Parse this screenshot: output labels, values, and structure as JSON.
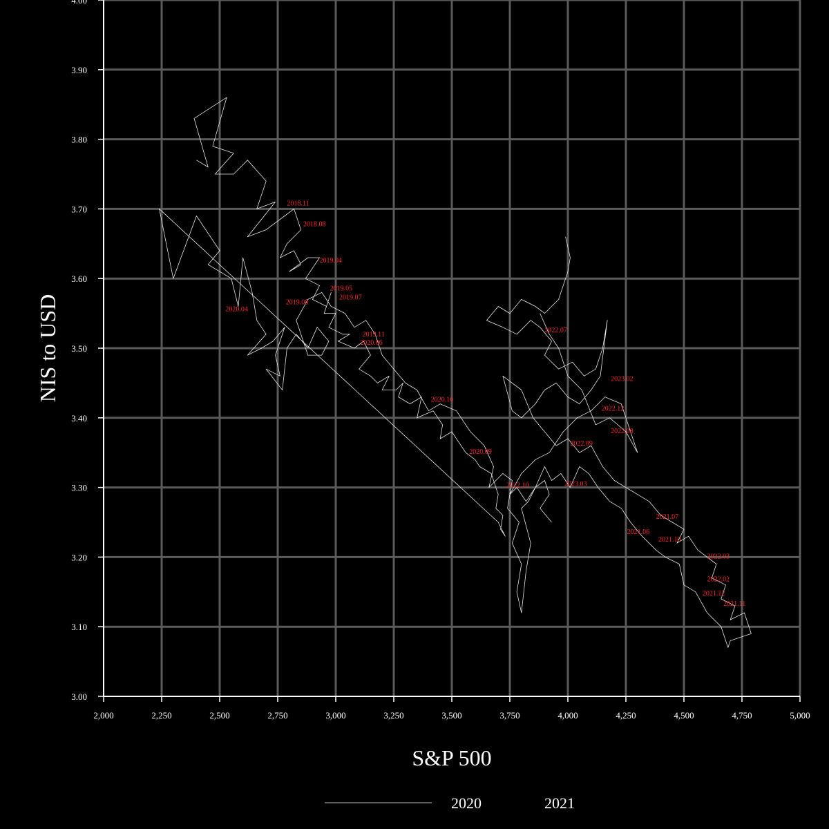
{
  "chart_data": {
    "type": "line",
    "title": "",
    "xlabel": "S&P 500",
    "ylabel": "NIS to USD",
    "xlim": [
      2000,
      5000
    ],
    "ylim": [
      3.0,
      4.0
    ],
    "x_ticks": [
      2000,
      2250,
      2500,
      2750,
      3000,
      3250,
      3500,
      3750,
      4000,
      4250,
      4500,
      4750,
      5000
    ],
    "x_tick_labels": [
      "2,000",
      "2,250",
      "2,500",
      "2,750",
      "3,000",
      "3,250",
      "3,500",
      "3,750",
      "4,000",
      "4,250",
      "4,500",
      "4,750",
      "5,000"
    ],
    "y_ticks": [
      3.0,
      3.1,
      3.2,
      3.3,
      3.4,
      3.5,
      3.6,
      3.7,
      3.8,
      3.9,
      4.0
    ],
    "y_tick_labels": [
      "3.00",
      "3.10",
      "3.20",
      "3.30",
      "3.40",
      "3.50",
      "3.60",
      "3.70",
      "3.80",
      "3.90",
      "4.00"
    ],
    "grid": true,
    "legend_position": "bottom",
    "series": [
      {
        "name": "2020",
        "color": "#e8e8e8",
        "points": [
          [
            2400,
            3.77
          ],
          [
            2450,
            3.76
          ],
          [
            2390,
            3.83
          ],
          [
            2530,
            3.86
          ],
          [
            2470,
            3.79
          ],
          [
            2560,
            3.78
          ],
          [
            2480,
            3.75
          ],
          [
            2560,
            3.75
          ],
          [
            2620,
            3.77
          ],
          [
            2700,
            3.74
          ],
          [
            2660,
            3.7
          ],
          [
            2740,
            3.71
          ],
          [
            2620,
            3.66
          ],
          [
            2700,
            3.67
          ],
          [
            2780,
            3.69
          ],
          [
            2820,
            3.7
          ],
          [
            2850,
            3.67
          ],
          [
            2790,
            3.65
          ],
          [
            2760,
            3.63
          ],
          [
            2820,
            3.64
          ],
          [
            2850,
            3.62
          ],
          [
            2800,
            3.61
          ],
          [
            2880,
            3.63
          ],
          [
            2930,
            3.63
          ],
          [
            2870,
            3.6
          ],
          [
            2930,
            3.59
          ],
          [
            2900,
            3.57
          ],
          [
            2960,
            3.56
          ],
          [
            2980,
            3.58
          ],
          [
            2950,
            3.55
          ],
          [
            3000,
            3.55
          ],
          [
            2970,
            3.53
          ],
          [
            3030,
            3.52
          ],
          [
            3060,
            3.52
          ],
          [
            3010,
            3.51
          ],
          [
            3080,
            3.5
          ],
          [
            3120,
            3.51
          ],
          [
            3150,
            3.49
          ],
          [
            3100,
            3.47
          ],
          [
            3150,
            3.46
          ],
          [
            3180,
            3.45
          ],
          [
            3230,
            3.46
          ],
          [
            3200,
            3.44
          ],
          [
            3260,
            3.44
          ],
          [
            3290,
            3.45
          ],
          [
            3270,
            3.43
          ],
          [
            3320,
            3.42
          ],
          [
            3370,
            3.43
          ],
          [
            3350,
            3.4
          ],
          [
            3420,
            3.41
          ],
          [
            3460,
            3.39
          ],
          [
            3450,
            3.37
          ],
          [
            3500,
            3.38
          ],
          [
            3540,
            3.36
          ],
          [
            3560,
            3.35
          ],
          [
            3600,
            3.34
          ],
          [
            3620,
            3.33
          ],
          [
            3670,
            3.32
          ],
          [
            3690,
            3.3
          ],
          [
            3700,
            3.29
          ],
          [
            3690,
            3.27
          ],
          [
            3720,
            3.26
          ],
          [
            3710,
            3.24
          ],
          [
            3730,
            3.23
          ],
          [
            3700,
            3.25
          ],
          [
            2240,
            3.7
          ],
          [
            2300,
            3.6
          ],
          [
            2400,
            3.69
          ],
          [
            2500,
            3.64
          ],
          [
            2450,
            3.62
          ],
          [
            2550,
            3.6
          ],
          [
            2580,
            3.56
          ],
          [
            2600,
            3.63
          ],
          [
            2640,
            3.58
          ],
          [
            2660,
            3.54
          ],
          [
            2700,
            3.52
          ],
          [
            2620,
            3.49
          ],
          [
            2680,
            3.5
          ],
          [
            2730,
            3.51
          ],
          [
            2780,
            3.53
          ],
          [
            2740,
            3.49
          ],
          [
            2760,
            3.46
          ],
          [
            2700,
            3.47
          ],
          [
            2770,
            3.44
          ],
          [
            2790,
            3.5
          ],
          [
            2830,
            3.52
          ],
          [
            2880,
            3.5
          ],
          [
            2920,
            3.53
          ],
          [
            2970,
            3.51
          ],
          [
            2940,
            3.49
          ],
          [
            2880,
            3.49
          ],
          [
            2830,
            3.54
          ],
          [
            2880,
            3.57
          ],
          [
            2940,
            3.58
          ],
          [
            2980,
            3.56
          ],
          [
            3040,
            3.55
          ],
          [
            3080,
            3.53
          ],
          [
            3130,
            3.54
          ],
          [
            3170,
            3.52
          ],
          [
            3200,
            3.49
          ],
          [
            3250,
            3.47
          ],
          [
            3300,
            3.45
          ],
          [
            3350,
            3.44
          ],
          [
            3400,
            3.41
          ],
          [
            3450,
            3.42
          ],
          [
            3520,
            3.41
          ],
          [
            3580,
            3.38
          ],
          [
            3640,
            3.36
          ],
          [
            3680,
            3.33
          ],
          [
            3660,
            3.3
          ],
          [
            3720,
            3.32
          ],
          [
            3760,
            3.31
          ],
          [
            3740,
            3.27
          ],
          [
            3790,
            3.25
          ],
          [
            3760,
            3.22
          ],
          [
            3800,
            3.19
          ],
          [
            3780,
            3.15
          ],
          [
            3800,
            3.12
          ],
          [
            3820,
            3.18
          ],
          [
            3840,
            3.22
          ],
          [
            3800,
            3.27
          ],
          [
            3830,
            3.28
          ],
          [
            3860,
            3.3
          ],
          [
            3900,
            3.31
          ],
          [
            3920,
            3.29
          ],
          [
            3880,
            3.27
          ],
          [
            3930,
            3.25
          ]
        ]
      },
      {
        "name": "2021",
        "color": "#e8e8e8",
        "points": [
          [
            3990,
            3.66
          ],
          [
            4010,
            3.63
          ],
          [
            4000,
            3.61
          ],
          [
            3960,
            3.57
          ],
          [
            3900,
            3.55
          ],
          [
            3860,
            3.56
          ],
          [
            3800,
            3.57
          ],
          [
            3750,
            3.55
          ],
          [
            3700,
            3.56
          ],
          [
            3650,
            3.54
          ],
          [
            3720,
            3.53
          ],
          [
            3780,
            3.52
          ],
          [
            3840,
            3.54
          ],
          [
            3880,
            3.53
          ],
          [
            3930,
            3.51
          ],
          [
            3900,
            3.49
          ],
          [
            3960,
            3.47
          ],
          [
            4020,
            3.48
          ],
          [
            4070,
            3.46
          ],
          [
            4120,
            3.47
          ],
          [
            4150,
            3.5
          ],
          [
            4170,
            3.54
          ],
          [
            4140,
            3.46
          ],
          [
            4100,
            3.44
          ],
          [
            4050,
            3.42
          ],
          [
            4000,
            3.43
          ],
          [
            3950,
            3.45
          ],
          [
            3900,
            3.44
          ],
          [
            3860,
            3.42
          ],
          [
            3800,
            3.4
          ],
          [
            3760,
            3.41
          ],
          [
            3720,
            3.46
          ],
          [
            3800,
            3.44
          ],
          [
            3850,
            3.4
          ],
          [
            3900,
            3.38
          ],
          [
            3950,
            3.36
          ],
          [
            4000,
            3.37
          ],
          [
            4050,
            3.35
          ],
          [
            4100,
            3.36
          ],
          [
            4150,
            3.33
          ],
          [
            4200,
            3.31
          ],
          [
            4250,
            3.3
          ],
          [
            4300,
            3.29
          ],
          [
            4350,
            3.28
          ],
          [
            4400,
            3.26
          ],
          [
            4450,
            3.25
          ],
          [
            4500,
            3.24
          ],
          [
            4470,
            3.22
          ],
          [
            4520,
            3.23
          ],
          [
            4560,
            3.21
          ],
          [
            4600,
            3.2
          ],
          [
            4640,
            3.19
          ],
          [
            4620,
            3.17
          ],
          [
            4680,
            3.16
          ],
          [
            4660,
            3.14
          ],
          [
            4720,
            3.13
          ],
          [
            4700,
            3.11
          ],
          [
            4760,
            3.12
          ],
          [
            4790,
            3.09
          ],
          [
            4700,
            3.08
          ],
          [
            4690,
            3.07
          ],
          [
            4660,
            3.1
          ],
          [
            4600,
            3.12
          ],
          [
            4550,
            3.15
          ],
          [
            4500,
            3.16
          ],
          [
            4480,
            3.19
          ],
          [
            4420,
            3.2
          ],
          [
            4380,
            3.21
          ],
          [
            4320,
            3.23
          ],
          [
            4270,
            3.25
          ],
          [
            4230,
            3.27
          ],
          [
            4180,
            3.28
          ],
          [
            4130,
            3.3
          ],
          [
            4090,
            3.32
          ],
          [
            4050,
            3.33
          ],
          [
            4010,
            3.3
          ],
          [
            3970,
            3.32
          ],
          [
            3930,
            3.31
          ],
          [
            3900,
            3.33
          ],
          [
            3860,
            3.3
          ],
          [
            3820,
            3.28
          ],
          [
            3780,
            3.3
          ],
          [
            3750,
            3.29
          ],
          [
            3800,
            3.32
          ],
          [
            3860,
            3.34
          ],
          [
            3920,
            3.35
          ],
          [
            3980,
            3.38
          ],
          [
            4040,
            3.4
          ],
          [
            4100,
            3.41
          ],
          [
            4160,
            3.43
          ],
          [
            4230,
            3.42
          ],
          [
            4300,
            3.35
          ],
          [
            4250,
            3.38
          ],
          [
            4180,
            3.4
          ],
          [
            4120,
            3.39
          ],
          [
            4060,
            3.44
          ],
          [
            4000,
            3.46
          ],
          [
            3960,
            3.5
          ],
          [
            3920,
            3.52
          ],
          [
            3880,
            3.55
          ]
        ]
      }
    ],
    "annotations": [
      {
        "text": "2018.11",
        "x": 2790,
        "y": 3.705
      },
      {
        "text": "2018.08",
        "x": 2860,
        "y": 3.675
      },
      {
        "text": "2019.04",
        "x": 2930,
        "y": 3.623
      },
      {
        "text": "2019.05",
        "x": 2975,
        "y": 3.583
      },
      {
        "text": "2019.07",
        "x": 3015,
        "y": 3.57
      },
      {
        "text": "2019.08",
        "x": 2785,
        "y": 3.563
      },
      {
        "text": "2020.04",
        "x": 2525,
        "y": 3.553
      },
      {
        "text": "2019.11",
        "x": 3115,
        "y": 3.517
      },
      {
        "text": "2020.06",
        "x": 3105,
        "y": 3.505
      },
      {
        "text": "2020.10",
        "x": 3410,
        "y": 3.423
      },
      {
        "text": "2020.09",
        "x": 3575,
        "y": 3.348
      },
      {
        "text": "2022.07",
        "x": 3900,
        "y": 3.523
      },
      {
        "text": "2023.02",
        "x": 4185,
        "y": 3.453
      },
      {
        "text": "2022.12",
        "x": 4145,
        "y": 3.41
      },
      {
        "text": "2022.08",
        "x": 4185,
        "y": 3.378
      },
      {
        "text": "2022.09",
        "x": 4010,
        "y": 3.36
      },
      {
        "text": "2022.10",
        "x": 3735,
        "y": 3.3
      },
      {
        "text": "2023.03",
        "x": 3985,
        "y": 3.302
      },
      {
        "text": "2021.07",
        "x": 4380,
        "y": 3.255
      },
      {
        "text": "2021.06",
        "x": 4255,
        "y": 3.233
      },
      {
        "text": "2021.10",
        "x": 4390,
        "y": 3.222
      },
      {
        "text": "2022.03",
        "x": 4600,
        "y": 3.198
      },
      {
        "text": "2022.02",
        "x": 4600,
        "y": 3.165
      },
      {
        "text": "2021.12",
        "x": 4580,
        "y": 3.145
      },
      {
        "text": "2021.11",
        "x": 4670,
        "y": 3.13
      }
    ]
  }
}
